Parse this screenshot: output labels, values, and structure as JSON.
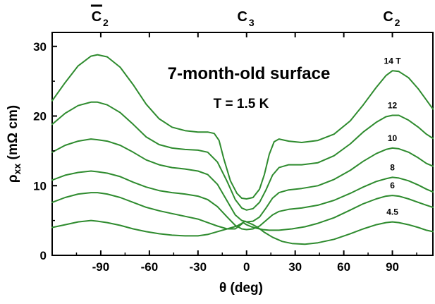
{
  "chart_data": {
    "type": "line",
    "title": "7-month-old surface",
    "subtitle": "T = 1.5 K",
    "xlabel": "θ (deg)",
    "ylabel": "ρxx (mΩ cm)",
    "xlim": [
      -120,
      115
    ],
    "ylim": [
      0,
      32
    ],
    "xticks": [
      -90,
      -60,
      -30,
      0,
      30,
      60,
      90
    ],
    "xtick_labels": [
      "-90",
      "-60",
      "-30",
      "0",
      "30",
      "60",
      "90"
    ],
    "yticks": [
      0,
      10,
      20,
      30
    ],
    "ytick_labels": [
      "0",
      "10",
      "20",
      "30"
    ],
    "top_labels": [
      {
        "x": -90,
        "base": "C",
        "sub": "2",
        "overline": true
      },
      {
        "x": 0,
        "base": "C",
        "sub": "3",
        "overline": false
      },
      {
        "x": 90,
        "base": "C",
        "sub": "2",
        "overline": false
      }
    ],
    "grid": false,
    "line_color": "#2e8b2e",
    "series": [
      {
        "name": "14 T",
        "points": [
          [
            -120,
            22.2
          ],
          [
            -112,
            24.8
          ],
          [
            -104,
            27.2
          ],
          [
            -96,
            28.6
          ],
          [
            -92,
            28.8
          ],
          [
            -86,
            28.5
          ],
          [
            -78,
            27.0
          ],
          [
            -70,
            24.5
          ],
          [
            -62,
            21.7
          ],
          [
            -54,
            19.6
          ],
          [
            -46,
            18.4
          ],
          [
            -38,
            17.9
          ],
          [
            -30,
            17.7
          ],
          [
            -24,
            17.7
          ],
          [
            -20,
            17.5
          ],
          [
            -17,
            16.5
          ],
          [
            -14,
            13.8
          ],
          [
            -10,
            10.7
          ],
          [
            -6,
            8.9
          ],
          [
            -3,
            8.2
          ],
          [
            0,
            8.1
          ],
          [
            4,
            8.3
          ],
          [
            8,
            9.5
          ],
          [
            11,
            11.6
          ],
          [
            14,
            14.5
          ],
          [
            17,
            16.3
          ],
          [
            20,
            16.7
          ],
          [
            26,
            16.4
          ],
          [
            34,
            16.2
          ],
          [
            44,
            16.5
          ],
          [
            54,
            17.4
          ],
          [
            64,
            19.3
          ],
          [
            72,
            21.6
          ],
          [
            80,
            24.1
          ],
          [
            86,
            25.8
          ],
          [
            90,
            26.5
          ],
          [
            94,
            26.4
          ],
          [
            100,
            25.5
          ],
          [
            106,
            23.9
          ],
          [
            111,
            22.3
          ],
          [
            115,
            21.0
          ]
        ]
      },
      {
        "name": "12",
        "points": [
          [
            -120,
            18.8
          ],
          [
            -112,
            20.4
          ],
          [
            -104,
            21.5
          ],
          [
            -96,
            22.0
          ],
          [
            -92,
            22.0
          ],
          [
            -86,
            21.6
          ],
          [
            -78,
            20.5
          ],
          [
            -70,
            18.8
          ],
          [
            -62,
            17.0
          ],
          [
            -54,
            15.9
          ],
          [
            -46,
            15.4
          ],
          [
            -38,
            15.2
          ],
          [
            -30,
            15.1
          ],
          [
            -24,
            14.8
          ],
          [
            -18,
            13.4
          ],
          [
            -12,
            10.6
          ],
          [
            -7,
            8.0
          ],
          [
            -3,
            6.8
          ],
          [
            0,
            6.5
          ],
          [
            4,
            6.7
          ],
          [
            8,
            7.6
          ],
          [
            12,
            9.4
          ],
          [
            16,
            11.5
          ],
          [
            20,
            12.6
          ],
          [
            26,
            13.0
          ],
          [
            34,
            13.0
          ],
          [
            44,
            13.3
          ],
          [
            54,
            14.3
          ],
          [
            64,
            16.0
          ],
          [
            72,
            17.7
          ],
          [
            80,
            19.1
          ],
          [
            86,
            19.9
          ],
          [
            90,
            20.1
          ],
          [
            94,
            20.1
          ],
          [
            100,
            19.4
          ],
          [
            106,
            18.4
          ],
          [
            111,
            17.4
          ],
          [
            115,
            16.8
          ]
        ]
      },
      {
        "name": "10",
        "points": [
          [
            -120,
            14.8
          ],
          [
            -112,
            15.8
          ],
          [
            -104,
            16.4
          ],
          [
            -96,
            16.7
          ],
          [
            -92,
            16.6
          ],
          [
            -86,
            16.4
          ],
          [
            -78,
            15.8
          ],
          [
            -70,
            14.8
          ],
          [
            -62,
            13.7
          ],
          [
            -54,
            13.0
          ],
          [
            -46,
            12.6
          ],
          [
            -38,
            12.4
          ],
          [
            -30,
            12.1
          ],
          [
            -24,
            11.6
          ],
          [
            -18,
            10.2
          ],
          [
            -12,
            7.8
          ],
          [
            -7,
            5.8
          ],
          [
            -3,
            5.0
          ],
          [
            0,
            4.8
          ],
          [
            4,
            4.9
          ],
          [
            8,
            5.5
          ],
          [
            12,
            6.8
          ],
          [
            16,
            8.2
          ],
          [
            20,
            9.0
          ],
          [
            26,
            9.4
          ],
          [
            34,
            9.6
          ],
          [
            44,
            10.0
          ],
          [
            54,
            10.9
          ],
          [
            64,
            12.2
          ],
          [
            72,
            13.5
          ],
          [
            80,
            14.6
          ],
          [
            86,
            15.2
          ],
          [
            90,
            15.4
          ],
          [
            94,
            15.3
          ],
          [
            100,
            14.8
          ],
          [
            106,
            14.0
          ],
          [
            111,
            13.2
          ],
          [
            115,
            12.8
          ]
        ]
      },
      {
        "name": "8",
        "points": [
          [
            -120,
            10.8
          ],
          [
            -112,
            11.5
          ],
          [
            -104,
            11.9
          ],
          [
            -96,
            12.1
          ],
          [
            -92,
            12.0
          ],
          [
            -86,
            11.8
          ],
          [
            -78,
            11.3
          ],
          [
            -70,
            10.5
          ],
          [
            -62,
            9.8
          ],
          [
            -54,
            9.3
          ],
          [
            -46,
            9.0
          ],
          [
            -38,
            8.8
          ],
          [
            -30,
            8.5
          ],
          [
            -24,
            8.0
          ],
          [
            -18,
            7.0
          ],
          [
            -12,
            5.5
          ],
          [
            -7,
            4.3
          ],
          [
            -3,
            3.8
          ],
          [
            0,
            3.7
          ],
          [
            4,
            3.8
          ],
          [
            8,
            4.2
          ],
          [
            12,
            5.0
          ],
          [
            16,
            5.8
          ],
          [
            20,
            6.3
          ],
          [
            26,
            6.6
          ],
          [
            34,
            6.8
          ],
          [
            44,
            7.2
          ],
          [
            54,
            7.9
          ],
          [
            64,
            8.9
          ],
          [
            72,
            9.8
          ],
          [
            80,
            10.6
          ],
          [
            86,
            11.0
          ],
          [
            90,
            11.2
          ],
          [
            94,
            11.1
          ],
          [
            100,
            10.7
          ],
          [
            106,
            10.1
          ],
          [
            111,
            9.5
          ],
          [
            115,
            9.1
          ]
        ]
      },
      {
        "name": "6",
        "points": [
          [
            -120,
            7.6
          ],
          [
            -112,
            8.3
          ],
          [
            -104,
            8.8
          ],
          [
            -96,
            9.0
          ],
          [
            -92,
            9.0
          ],
          [
            -86,
            8.8
          ],
          [
            -78,
            8.3
          ],
          [
            -70,
            7.6
          ],
          [
            -62,
            6.9
          ],
          [
            -54,
            6.4
          ],
          [
            -46,
            6.0
          ],
          [
            -38,
            5.6
          ],
          [
            -30,
            5.2
          ],
          [
            -24,
            4.7
          ],
          [
            -18,
            4.2
          ],
          [
            -12,
            3.8
          ],
          [
            -7,
            3.8
          ],
          [
            -4,
            4.3
          ],
          [
            -2,
            4.7
          ],
          [
            0,
            4.4
          ],
          [
            3,
            4.1
          ],
          [
            6,
            3.9
          ],
          [
            10,
            3.7
          ],
          [
            14,
            3.6
          ],
          [
            20,
            3.6
          ],
          [
            28,
            3.8
          ],
          [
            36,
            4.1
          ],
          [
            44,
            4.6
          ],
          [
            54,
            5.4
          ],
          [
            64,
            6.5
          ],
          [
            72,
            7.4
          ],
          [
            80,
            8.1
          ],
          [
            86,
            8.5
          ],
          [
            90,
            8.6
          ],
          [
            94,
            8.5
          ],
          [
            100,
            8.1
          ],
          [
            106,
            7.6
          ],
          [
            111,
            7.2
          ],
          [
            115,
            6.9
          ]
        ]
      },
      {
        "name": "4.5",
        "points": [
          [
            -120,
            4.0
          ],
          [
            -112,
            4.4
          ],
          [
            -104,
            4.8
          ],
          [
            -96,
            5.0
          ],
          [
            -92,
            4.9
          ],
          [
            -86,
            4.7
          ],
          [
            -78,
            4.3
          ],
          [
            -70,
            3.8
          ],
          [
            -62,
            3.4
          ],
          [
            -54,
            3.1
          ],
          [
            -46,
            2.9
          ],
          [
            -38,
            2.8
          ],
          [
            -30,
            2.8
          ],
          [
            -24,
            3.0
          ],
          [
            -18,
            3.4
          ],
          [
            -12,
            3.8
          ],
          [
            -6,
            4.2
          ],
          [
            -3,
            4.6
          ],
          [
            -1,
            4.9
          ],
          [
            1,
            4.7
          ],
          [
            4,
            4.4
          ],
          [
            7,
            4.0
          ],
          [
            11,
            3.3
          ],
          [
            16,
            2.6
          ],
          [
            22,
            2.0
          ],
          [
            28,
            1.7
          ],
          [
            36,
            1.6
          ],
          [
            44,
            1.8
          ],
          [
            54,
            2.3
          ],
          [
            64,
            3.1
          ],
          [
            72,
            3.8
          ],
          [
            80,
            4.4
          ],
          [
            86,
            4.7
          ],
          [
            90,
            4.8
          ],
          [
            94,
            4.7
          ],
          [
            100,
            4.4
          ],
          [
            106,
            4.0
          ],
          [
            111,
            3.6
          ],
          [
            115,
            3.4
          ]
        ]
      }
    ],
    "series_label_positions": {
      "14 T": [
        90,
        27.5
      ],
      "12": [
        90,
        21.1
      ],
      "10": [
        90,
        16.4
      ],
      "8": [
        90,
        12.2
      ],
      "6": [
        90,
        9.6
      ],
      "4.5": [
        90,
        5.8
      ]
    }
  }
}
